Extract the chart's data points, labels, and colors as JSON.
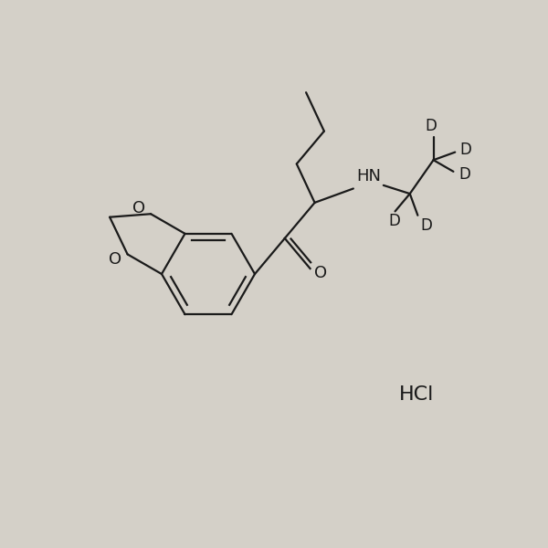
{
  "bg_color": "#d4d0c8",
  "line_color": "#1a1a1a",
  "line_width": 1.6,
  "font_size": 13,
  "fig_width": 6.0,
  "fig_height": 6.0,
  "xlim": [
    0,
    10
  ],
  "ylim": [
    0,
    10
  ],
  "HCl_label": "HCl",
  "NH_label": "HN",
  "O_label": "O",
  "D_label": "D"
}
